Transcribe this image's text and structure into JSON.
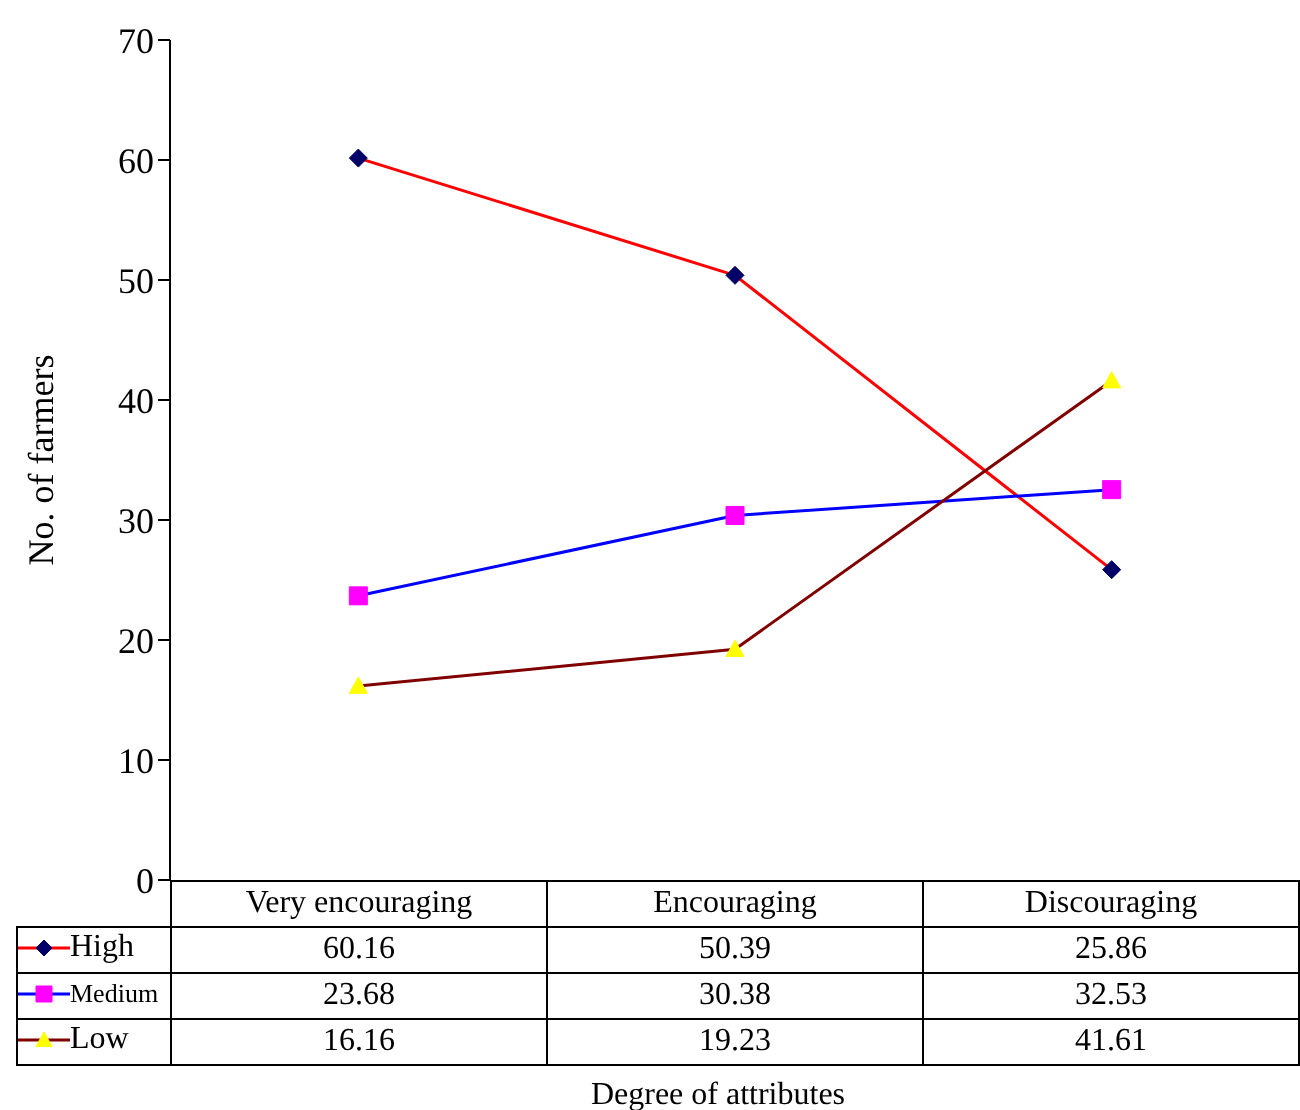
{
  "chart_data": {
    "type": "line",
    "ylabel": "No. of farmers",
    "xlabel": "Degree of attributes",
    "categories": [
      "Very encouraging",
      "Encouraging",
      "Discouraging"
    ],
    "series": [
      {
        "name": "High",
        "color": "#ff0000",
        "marker": "diamond",
        "values": [
          60.16,
          50.39,
          25.86
        ]
      },
      {
        "name": "Medium",
        "color": "#0000ff",
        "marker": "square",
        "values": [
          23.68,
          30.38,
          32.53
        ]
      },
      {
        "name": "Low",
        "color": "#800000",
        "marker": "triangle",
        "values": [
          16.16,
          19.23,
          41.61
        ]
      }
    ],
    "ylim": [
      0,
      70
    ],
    "yticks": [
      0,
      10,
      20,
      30,
      40,
      50,
      60,
      70
    ],
    "legend": "bottom",
    "data_labels": true
  }
}
